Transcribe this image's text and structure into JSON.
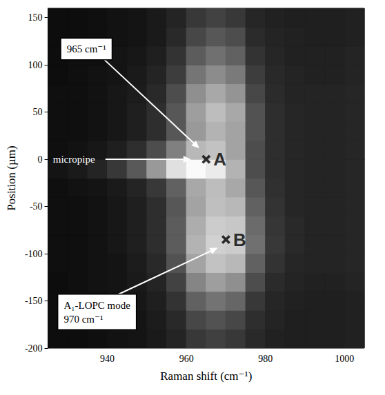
{
  "chart_data": {
    "type": "heatmap",
    "xlabel": "Raman shift (cm⁻¹)",
    "ylabel": "Position (µm)",
    "xlim": [
      925,
      1005
    ],
    "xticks": [
      940,
      960,
      980,
      1000
    ],
    "ylim": [
      -200,
      160
    ],
    "yticks": [
      -200,
      -150,
      -100,
      -50,
      0,
      50,
      100,
      150
    ],
    "x_edges": [
      925,
      930,
      935,
      940,
      945,
      950,
      955,
      960,
      965,
      970,
      975,
      980,
      985,
      990,
      995,
      1000,
      1005
    ],
    "y_edges": [
      -200,
      -180,
      -160,
      -140,
      -120,
      -100,
      -80,
      -60,
      -40,
      -20,
      0,
      20,
      40,
      60,
      80,
      100,
      120,
      140,
      160
    ],
    "intensity": [
      [
        5,
        5,
        6,
        7,
        8,
        10,
        14,
        22,
        25,
        22,
        16,
        13,
        12,
        12,
        12,
        13
      ],
      [
        5,
        5,
        6,
        7,
        8,
        11,
        16,
        28,
        32,
        28,
        18,
        14,
        12,
        12,
        12,
        13
      ],
      [
        5,
        6,
        6,
        7,
        9,
        12,
        20,
        38,
        45,
        40,
        22,
        15,
        13,
        12,
        12,
        13
      ],
      [
        5,
        6,
        7,
        8,
        10,
        14,
        26,
        52,
        62,
        56,
        30,
        17,
        14,
        13,
        13,
        14
      ],
      [
        6,
        6,
        7,
        8,
        11,
        16,
        32,
        64,
        76,
        72,
        38,
        20,
        15,
        14,
        14,
        15
      ],
      [
        6,
        6,
        7,
        9,
        12,
        18,
        36,
        70,
        82,
        80,
        44,
        22,
        16,
        14,
        14,
        15
      ],
      [
        6,
        6,
        7,
        9,
        12,
        18,
        36,
        68,
        80,
        78,
        42,
        21,
        16,
        14,
        14,
        15
      ],
      [
        6,
        6,
        7,
        9,
        12,
        18,
        34,
        64,
        75,
        72,
        38,
        20,
        15,
        14,
        14,
        15
      ],
      [
        6,
        7,
        8,
        10,
        14,
        22,
        38,
        66,
        74,
        66,
        34,
        19,
        15,
        14,
        14,
        15
      ],
      [
        8,
        10,
        14,
        22,
        35,
        60,
        88,
        98,
        92,
        70,
        30,
        18,
        15,
        14,
        14,
        15
      ],
      [
        6,
        7,
        9,
        12,
        18,
        30,
        50,
        72,
        76,
        64,
        30,
        18,
        15,
        14,
        14,
        15
      ],
      [
        6,
        6,
        7,
        9,
        12,
        18,
        34,
        60,
        70,
        64,
        32,
        18,
        15,
        14,
        14,
        15
      ],
      [
        6,
        6,
        7,
        9,
        12,
        18,
        34,
        62,
        74,
        66,
        32,
        18,
        15,
        14,
        14,
        15
      ],
      [
        6,
        6,
        7,
        9,
        11,
        16,
        30,
        56,
        66,
        58,
        28,
        17,
        14,
        14,
        14,
        15
      ],
      [
        5,
        6,
        7,
        8,
        10,
        14,
        24,
        46,
        55,
        48,
        24,
        16,
        14,
        13,
        13,
        14
      ],
      [
        5,
        6,
        6,
        8,
        9,
        12,
        20,
        36,
        44,
        38,
        20,
        15,
        13,
        13,
        13,
        14
      ],
      [
        5,
        5,
        6,
        7,
        8,
        10,
        16,
        28,
        34,
        30,
        17,
        14,
        13,
        12,
        12,
        13
      ],
      [
        5,
        5,
        6,
        7,
        8,
        10,
        14,
        22,
        26,
        22,
        15,
        13,
        12,
        12,
        12,
        13
      ]
    ],
    "intensity_range": [
      0,
      100
    ],
    "points": [
      {
        "label": "A",
        "x": 965,
        "y": 0
      },
      {
        "label": "B",
        "x": 970,
        "y": -85
      }
    ],
    "marker": "cross",
    "annotations": [
      {
        "text": [
          "965 cm⁻¹"
        ],
        "point": "A"
      },
      {
        "text": [
          "micropipe"
        ],
        "point": "A"
      },
      {
        "text": [
          "A₁-LOPC mode",
          "970 cm⁻¹"
        ],
        "point": "B"
      }
    ]
  }
}
